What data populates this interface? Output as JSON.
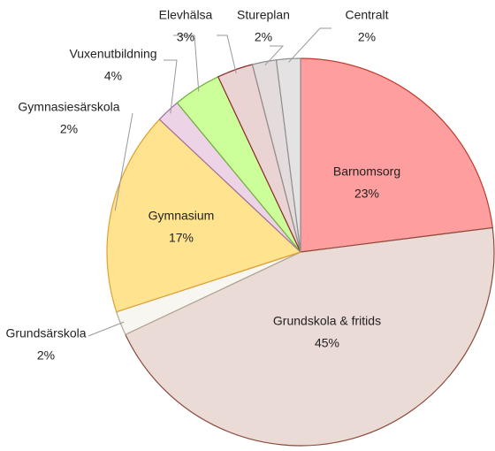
{
  "chart_data": {
    "type": "pie",
    "categories": [
      "Barnomsorg",
      "Grundskola & fritids",
      "Grundsärskola",
      "Gymnasium",
      "Gymnasiesärskola",
      "Vuxenutbildning",
      "Elevhälsa",
      "Stureplan",
      "Centralt"
    ],
    "values": [
      23,
      45,
      2,
      17,
      2,
      4,
      3,
      2,
      2
    ],
    "value_labels": [
      "23%",
      "45%",
      "2%",
      "17%",
      "2%",
      "4%",
      "3%",
      "2%",
      "2%"
    ],
    "colors": [
      "#ff9e9e",
      "#eadbd7",
      "#f7f6f1",
      "#ffe38f",
      "#ecd3e6",
      "#ccff99",
      "#ead3d3",
      "#e4dcdc",
      "#e4e2e2"
    ],
    "stroke_colors": [
      "#c0392b",
      "#8b4a3a",
      "#b0a898",
      "#e0a030",
      "#a0709a",
      "#70b040",
      "#8b2a2a",
      "#909090",
      "#909090"
    ]
  }
}
